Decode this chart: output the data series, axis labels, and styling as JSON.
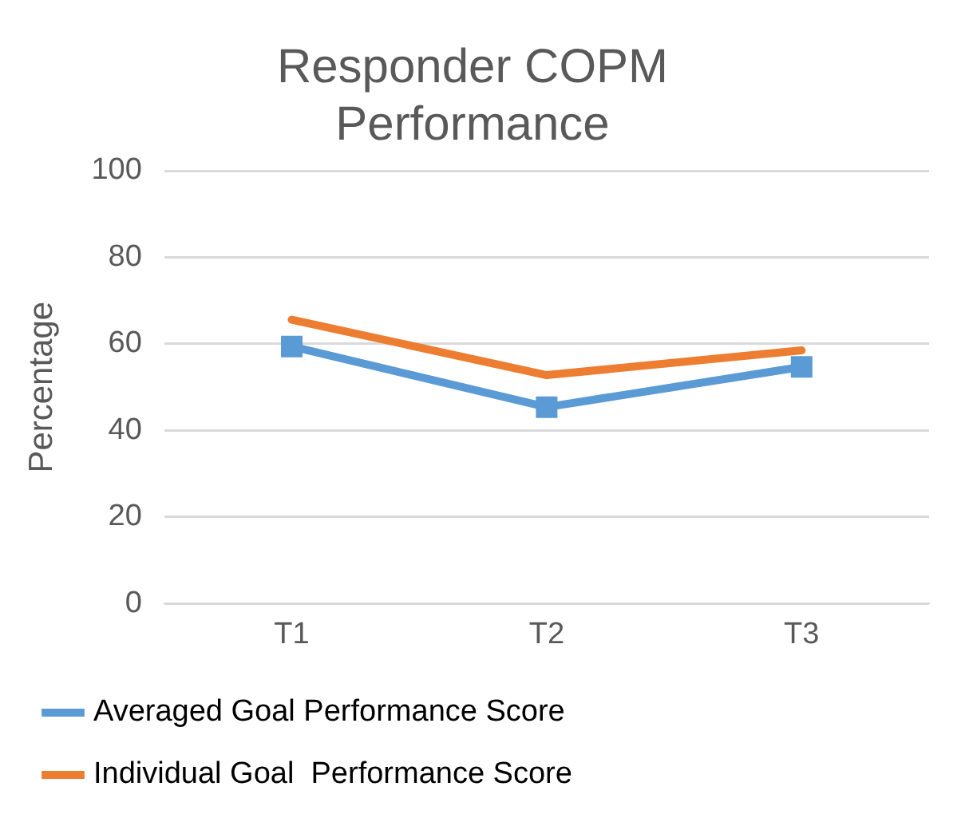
{
  "chart_data": {
    "type": "line",
    "title": "Responder COPM Performance",
    "ylabel": "Percentage",
    "categories": [
      "T1",
      "T2",
      "T3"
    ],
    "series": [
      {
        "name": "Averaged Goal Performance Score",
        "color": "#5b9bd5",
        "marker": "square",
        "values": [
          59.4,
          45.4,
          54.7
        ]
      },
      {
        "name": "Individual Goal  Performance Score",
        "color": "#ed7d31",
        "marker": "none",
        "values": [
          65.6,
          52.8,
          58.5
        ]
      }
    ],
    "ylim": [
      0,
      100
    ],
    "yticks": [
      0,
      20,
      40,
      60,
      80,
      100
    ],
    "grid": "y",
    "legend": "bottom",
    "line_style": "solid"
  }
}
